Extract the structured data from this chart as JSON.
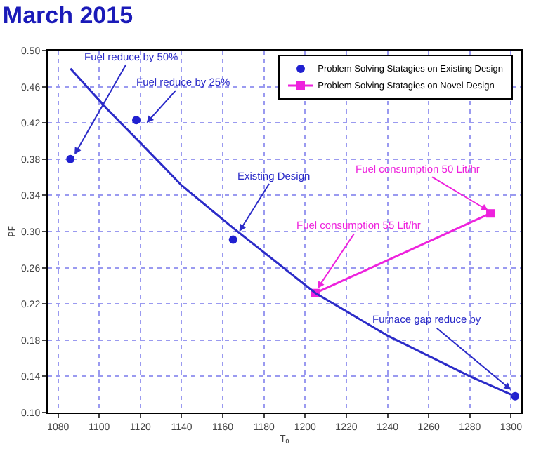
{
  "chart_data": {
    "type": "scatter",
    "title": "March 2015",
    "xlabel": "T₀",
    "ylabel": "PF",
    "xlim": [
      1075,
      1305
    ],
    "xticks": [
      1080,
      1100,
      1120,
      1140,
      1160,
      1180,
      1200,
      1220,
      1240,
      1260,
      1280,
      1300
    ],
    "ylim": [
      0.1,
      0.5
    ],
    "yticks": [
      {
        "value": 0.1,
        "label": "0.10"
      },
      {
        "value": 0.14,
        "label": "0.14"
      },
      {
        "value": 0.18,
        "label": "0.18"
      },
      {
        "value": 0.22,
        "label": "0.22"
      },
      {
        "value": 0.26,
        "label": "0.26"
      },
      {
        "value": 0.3,
        "label": "0.30"
      },
      {
        "value": 0.34,
        "label": "0.34"
      },
      {
        "value": 0.38,
        "label": "0.38"
      },
      {
        "value": 0.42,
        "label": "0.42"
      },
      {
        "value": 0.46,
        "label": "0.46"
      },
      {
        "value": 0.5,
        "label": "0.50"
      }
    ],
    "grid": true,
    "legend": "top right",
    "line_style": "solid",
    "series": [
      {
        "type": "scatter",
        "name": "Problem Solving Statagies on Existing Design",
        "color": "#2020d0",
        "marker": "circle",
        "x": [
          1086,
          1118,
          1165,
          1302
        ],
        "values": [
          0.38,
          0.423,
          0.291,
          0.118
        ]
      },
      {
        "type": "line",
        "name": "Problem Solving Statagies on Novel Design",
        "color": "#ee22dd",
        "marker": "square",
        "x": [
          1205,
          1290
        ],
        "values": [
          0.232,
          0.32
        ]
      },
      {
        "type": "line",
        "color": "#2b2bc8",
        "marker": "none",
        "x": [
          1086,
          1104,
          1120,
          1140,
          1165,
          1205,
          1240,
          1280,
          1302
        ],
        "values": [
          0.48,
          0.435,
          0.398,
          0.351,
          0.304,
          0.232,
          0.185,
          0.14,
          0.118
        ]
      }
    ],
    "annotations": [
      {
        "text": "Fuel reduce by 50%",
        "x": 1088,
        "y": 0.385
      },
      {
        "text": "Fuel reduce by 25%",
        "x": 1123,
        "y": 0.42
      },
      {
        "text": "Existing Design",
        "x": 1168,
        "y": 0.3
      },
      {
        "text": "Fuel consumption 55 Lit/hr",
        "x": 1206,
        "y": 0.237
      },
      {
        "text": "Fuel consumption 50 Lit/hr",
        "x": 1289,
        "y": 0.323
      },
      {
        "text": "Furnace gap reduce by",
        "x": 1300,
        "y": 0.125
      }
    ]
  }
}
